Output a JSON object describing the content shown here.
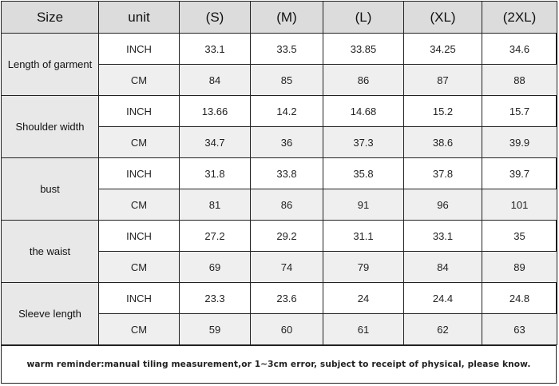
{
  "table": {
    "headers": [
      "Size",
      "unit",
      "(S)",
      "(M)",
      "(L)",
      "(XL)",
      "(2XL)"
    ],
    "rows": [
      {
        "label": "Length of garment",
        "inch": {
          "unit": "INCH",
          "values": [
            "33.1",
            "33.5",
            "33.85",
            "34.25",
            "34.6"
          ]
        },
        "cm": {
          "unit": "CM",
          "values": [
            "84",
            "85",
            "86",
            "87",
            "88"
          ]
        }
      },
      {
        "label": "Shoulder width",
        "inch": {
          "unit": "INCH",
          "values": [
            "13.66",
            "14.2",
            "14.68",
            "15.2",
            "15.7"
          ]
        },
        "cm": {
          "unit": "CM",
          "values": [
            "34.7",
            "36",
            "37.3",
            "38.6",
            "39.9"
          ]
        }
      },
      {
        "label": "bust",
        "inch": {
          "unit": "INCH",
          "values": [
            "31.8",
            "33.8",
            "35.8",
            "37.8",
            "39.7"
          ]
        },
        "cm": {
          "unit": "CM",
          "values": [
            "81",
            "86",
            "91",
            "96",
            "101"
          ]
        }
      },
      {
        "label": "the waist",
        "inch": {
          "unit": "INCH",
          "values": [
            "27.2",
            "29.2",
            "31.1",
            "33.1",
            "35"
          ]
        },
        "cm": {
          "unit": "CM",
          "values": [
            "69",
            "74",
            "79",
            "84",
            "89"
          ]
        }
      },
      {
        "label": "Sleeve length",
        "inch": {
          "unit": "INCH",
          "values": [
            "23.3",
            "23.6",
            "24",
            "24.4",
            "24.8"
          ]
        },
        "cm": {
          "unit": "CM",
          "values": [
            "59",
            "60",
            "61",
            "62",
            "63"
          ]
        }
      }
    ]
  },
  "footer": {
    "note": "warm reminder:manual tiling measurement,or 1~3cm error, subject to receipt of physical, please know."
  },
  "colors": {
    "header_bg": "#dcdcdc",
    "label_bg": "#e8e8e8",
    "shaded_row_bg": "#efefef",
    "border": "#222222"
  }
}
